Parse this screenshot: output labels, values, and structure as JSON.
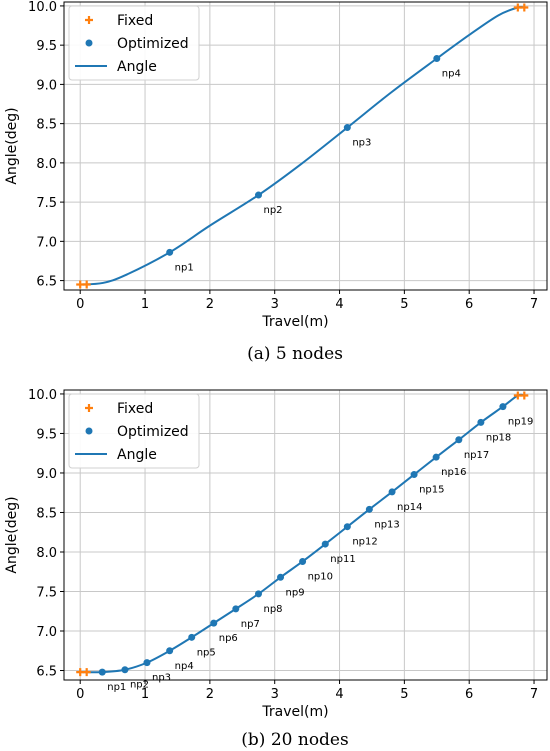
{
  "chart_data": [
    {
      "type": "line",
      "caption": "(a) 5 nodes",
      "xlabel": "Travel(m)",
      "ylabel": "Angle(deg)",
      "xlim": [
        -0.25,
        7.2
      ],
      "ylim": [
        6.38,
        10.05
      ],
      "xticks": [
        0,
        1,
        2,
        3,
        4,
        5,
        6,
        7
      ],
      "yticks": [
        6.5,
        7.0,
        7.5,
        8.0,
        8.5,
        9.0,
        9.5,
        10.0
      ],
      "grid": true,
      "legend_position": "top-left",
      "legend": [
        "Fixed",
        "Optimized",
        "Angle"
      ],
      "colors": {
        "fixed": "#ff7f0e",
        "optimized": "#1f77b4",
        "line": "#1f77b4"
      },
      "fixed": [
        {
          "x": 0.0,
          "y": 6.45
        },
        {
          "x": 0.1,
          "y": 6.45
        },
        {
          "x": 6.75,
          "y": 9.98
        },
        {
          "x": 6.85,
          "y": 9.98
        }
      ],
      "optimized": [
        {
          "x": 1.38,
          "y": 6.86,
          "label": "np1"
        },
        {
          "x": 2.75,
          "y": 7.59,
          "label": "np2"
        },
        {
          "x": 4.12,
          "y": 8.45,
          "label": "np3"
        },
        {
          "x": 5.5,
          "y": 9.33,
          "label": "np4"
        }
      ],
      "line": [
        {
          "x": 0.0,
          "y": 6.45
        },
        {
          "x": 0.35,
          "y": 6.47
        },
        {
          "x": 0.7,
          "y": 6.57
        },
        {
          "x": 1.38,
          "y": 6.86
        },
        {
          "x": 2.0,
          "y": 7.2
        },
        {
          "x": 2.75,
          "y": 7.59
        },
        {
          "x": 3.4,
          "y": 7.98
        },
        {
          "x": 4.12,
          "y": 8.45
        },
        {
          "x": 4.8,
          "y": 8.9
        },
        {
          "x": 5.5,
          "y": 9.33
        },
        {
          "x": 6.0,
          "y": 9.63
        },
        {
          "x": 6.45,
          "y": 9.88
        },
        {
          "x": 6.75,
          "y": 9.98
        },
        {
          "x": 6.85,
          "y": 9.98
        }
      ]
    },
    {
      "type": "line",
      "caption": "(b) 20 nodes",
      "xlabel": "Travel(m)",
      "ylabel": "Angle(deg)",
      "xlim": [
        -0.25,
        7.2
      ],
      "ylim": [
        6.38,
        10.05
      ],
      "xticks": [
        0,
        1,
        2,
        3,
        4,
        5,
        6,
        7
      ],
      "yticks": [
        6.5,
        7.0,
        7.5,
        8.0,
        8.5,
        9.0,
        9.5,
        10.0
      ],
      "grid": true,
      "legend_position": "top-left",
      "legend": [
        "Fixed",
        "Optimized",
        "Angle"
      ],
      "colors": {
        "fixed": "#ff7f0e",
        "optimized": "#1f77b4",
        "line": "#1f77b4"
      },
      "fixed": [
        {
          "x": 0.0,
          "y": 6.48
        },
        {
          "x": 0.1,
          "y": 6.48
        },
        {
          "x": 6.75,
          "y": 9.98
        },
        {
          "x": 6.85,
          "y": 9.98
        }
      ],
      "optimized": [
        {
          "x": 0.34,
          "y": 6.48,
          "label": "np1"
        },
        {
          "x": 0.69,
          "y": 6.51,
          "label": "np2"
        },
        {
          "x": 1.03,
          "y": 6.6,
          "label": "np3"
        },
        {
          "x": 1.38,
          "y": 6.75,
          "label": "np4"
        },
        {
          "x": 1.72,
          "y": 6.92,
          "label": "np5"
        },
        {
          "x": 2.06,
          "y": 7.1,
          "label": "np6"
        },
        {
          "x": 2.4,
          "y": 7.28,
          "label": "np7"
        },
        {
          "x": 2.75,
          "y": 7.47,
          "label": "np8"
        },
        {
          "x": 3.09,
          "y": 7.68,
          "label": "np9"
        },
        {
          "x": 3.43,
          "y": 7.88,
          "label": "np10"
        },
        {
          "x": 3.78,
          "y": 8.1,
          "label": "np11"
        },
        {
          "x": 4.12,
          "y": 8.32,
          "label": "np12"
        },
        {
          "x": 4.46,
          "y": 8.54,
          "label": "np13"
        },
        {
          "x": 4.81,
          "y": 8.76,
          "label": "np14"
        },
        {
          "x": 5.15,
          "y": 8.98,
          "label": "np15"
        },
        {
          "x": 5.49,
          "y": 9.2,
          "label": "np16"
        },
        {
          "x": 5.84,
          "y": 9.42,
          "label": "np17"
        },
        {
          "x": 6.18,
          "y": 9.64,
          "label": "np18"
        },
        {
          "x": 6.52,
          "y": 9.84,
          "label": "np19"
        }
      ],
      "line": [
        {
          "x": 0.0,
          "y": 6.48
        },
        {
          "x": 0.34,
          "y": 6.48
        },
        {
          "x": 0.69,
          "y": 6.51
        },
        {
          "x": 1.03,
          "y": 6.6
        },
        {
          "x": 1.38,
          "y": 6.75
        },
        {
          "x": 1.72,
          "y": 6.92
        },
        {
          "x": 2.06,
          "y": 7.1
        },
        {
          "x": 2.4,
          "y": 7.28
        },
        {
          "x": 2.75,
          "y": 7.47
        },
        {
          "x": 3.09,
          "y": 7.68
        },
        {
          "x": 3.43,
          "y": 7.88
        },
        {
          "x": 3.78,
          "y": 8.1
        },
        {
          "x": 4.12,
          "y": 8.32
        },
        {
          "x": 4.46,
          "y": 8.54
        },
        {
          "x": 4.81,
          "y": 8.76
        },
        {
          "x": 5.15,
          "y": 8.98
        },
        {
          "x": 5.49,
          "y": 9.2
        },
        {
          "x": 5.84,
          "y": 9.42
        },
        {
          "x": 6.18,
          "y": 9.64
        },
        {
          "x": 6.52,
          "y": 9.84
        },
        {
          "x": 6.75,
          "y": 9.98
        },
        {
          "x": 6.85,
          "y": 9.98
        }
      ]
    }
  ]
}
